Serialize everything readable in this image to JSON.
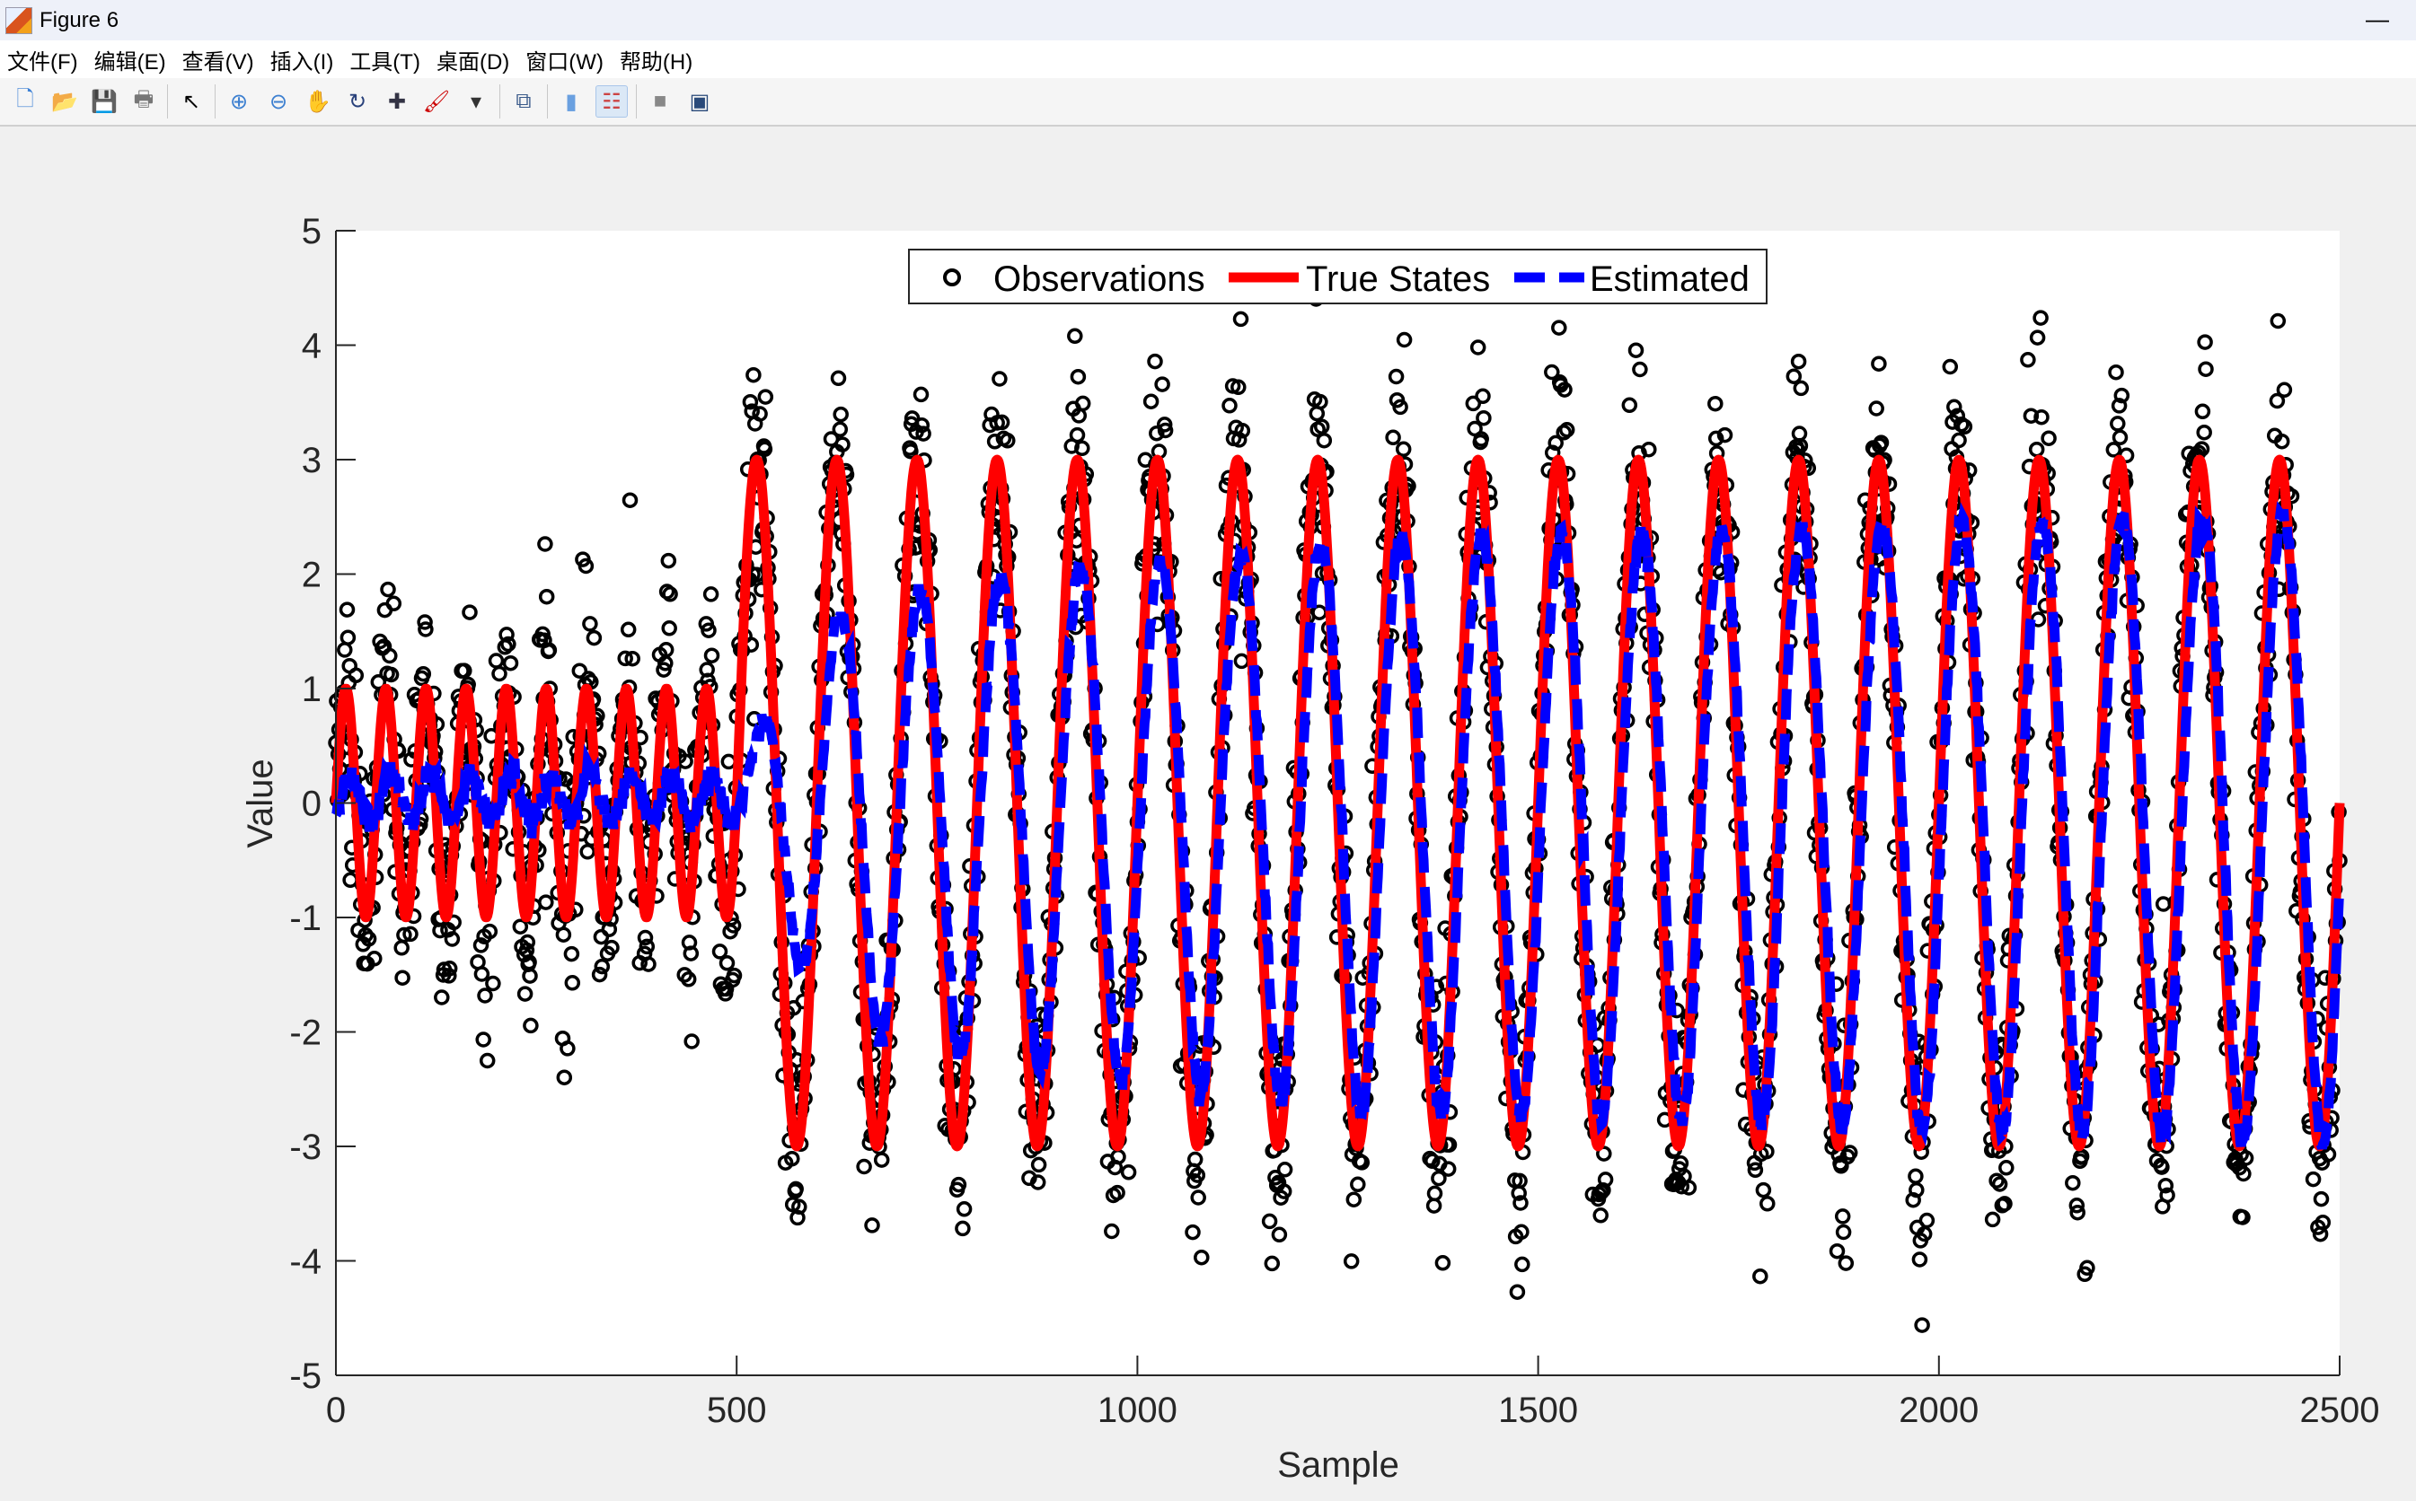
{
  "window": {
    "title": "Figure 6",
    "minimize": "—"
  },
  "menu": [
    "文件(F)",
    "编辑(E)",
    "查看(V)",
    "插入(I)",
    "工具(T)",
    "桌面(D)",
    "窗口(W)",
    "帮助(H)"
  ],
  "toolbar": [
    {
      "name": "new-figure-icon",
      "glyph": "🗋",
      "color": "#3a7fd5"
    },
    {
      "name": "open-file-icon",
      "glyph": "📂",
      "color": "#d9a520"
    },
    {
      "name": "save-icon",
      "glyph": "💾",
      "color": "#3a3a9a"
    },
    {
      "name": "print-icon",
      "glyph": "🖶",
      "color": "#777777"
    },
    {
      "sep": true
    },
    {
      "name": "pointer-icon",
      "glyph": "↖",
      "color": "#000000"
    },
    {
      "sep": true
    },
    {
      "name": "zoom-in-icon",
      "glyph": "⊕",
      "color": "#3c7fd0"
    },
    {
      "name": "zoom-out-icon",
      "glyph": "⊖",
      "color": "#3c7fd0"
    },
    {
      "name": "pan-hand-icon",
      "glyph": "✋",
      "color": "#c8a070"
    },
    {
      "name": "rotate-3d-icon",
      "glyph": "↻",
      "color": "#28407a"
    },
    {
      "name": "data-cursor-icon",
      "glyph": "✚",
      "color": "#334"
    },
    {
      "name": "brush-icon",
      "glyph": "🖌",
      "color": "#c00"
    },
    {
      "name": "brush-dropdown-icon",
      "glyph": "▾",
      "color": "#333"
    },
    {
      "sep": true
    },
    {
      "name": "link-plot-icon",
      "glyph": "⧉",
      "color": "#3a5a8a"
    },
    {
      "sep": true
    },
    {
      "name": "colorbar-icon",
      "glyph": "▮",
      "color": "#6aa0e0"
    },
    {
      "name": "legend-icon",
      "glyph": "☷",
      "color": "#c44",
      "active": true
    },
    {
      "sep": true
    },
    {
      "name": "hide-plot-tools-icon",
      "glyph": "■",
      "color": "#888"
    },
    {
      "name": "show-plot-tools-icon",
      "glyph": "▣",
      "color": "#2a4a7a"
    }
  ],
  "chart_data": {
    "type": "line",
    "title": "",
    "xlabel": "Sample",
    "ylabel": "Value",
    "xlim": [
      0,
      2500
    ],
    "ylim": [
      -5,
      5
    ],
    "xticks": [
      "0",
      "500",
      "1000",
      "1500",
      "2000",
      "2500"
    ],
    "xtick_values": [
      0,
      500,
      1000,
      1500,
      2000,
      2500
    ],
    "yticks": [
      "5",
      "4",
      "3",
      "2",
      "1",
      "0",
      "-1",
      "-2",
      "-3",
      "-4",
      "-5"
    ],
    "ytick_values": [
      5,
      4,
      3,
      2,
      1,
      0,
      -1,
      -2,
      -3,
      -4,
      -5
    ],
    "grid": false,
    "legend": {
      "placement": "top-center",
      "entries": [
        "Observations",
        "True States",
        "Estimated"
      ]
    },
    "series": [
      {
        "name": "Observations",
        "style": "circle markers",
        "color": "#000000",
        "model": "True States + gaussian noise",
        "noise_sd": 0.55,
        "n_points": 2501
      },
      {
        "name": "True States",
        "style": "solid",
        "color": "#ff0000",
        "segments": [
          {
            "x_range": [
              0,
              500
            ],
            "amplitude": 1,
            "period": 50
          },
          {
            "x_range": [
              500,
              2500
            ],
            "amplitude": 3,
            "period": 100
          }
        ]
      },
      {
        "name": "Estimated",
        "style": "dashed",
        "color": "#0000ff",
        "amplitude_knots": {
          "x": [
            0,
            500,
            540,
            620,
            720,
            900,
            1300,
            1800,
            2400,
            2500
          ],
          "amplitude": [
            0.2,
            0.2,
            0.9,
            1.8,
            2.0,
            2.2,
            2.5,
            2.6,
            2.75,
            2.75
          ]
        },
        "end_value": 0.2
      }
    ]
  }
}
